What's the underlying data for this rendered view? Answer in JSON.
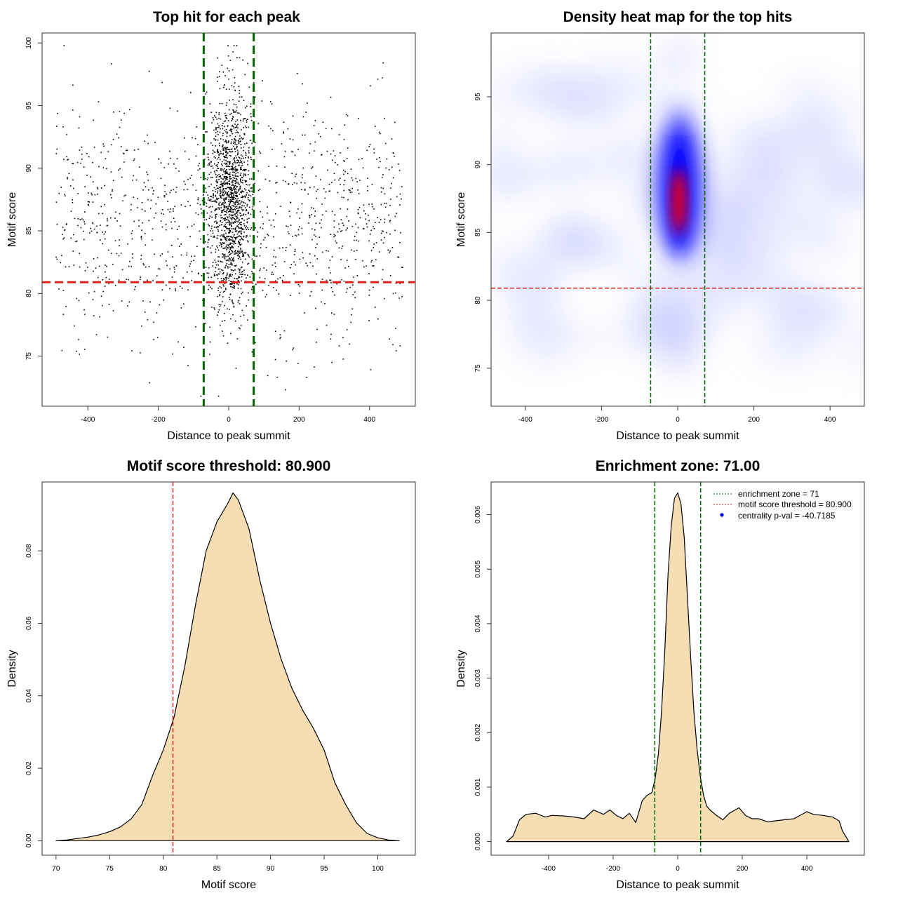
{
  "chart_data": [
    {
      "type": "scatter",
      "title": "Top hit for each peak",
      "xlabel": "Distance to peak summit",
      "ylabel": "Motif score",
      "xlim": [
        -530,
        530
      ],
      "ylim": [
        71,
        100.8
      ],
      "xticks": [
        "-400",
        "-200",
        "0",
        "200",
        "400"
      ],
      "xtick_values": [
        -400,
        -200,
        0,
        200,
        400
      ],
      "yticks": [
        "75",
        "80",
        "85",
        "90",
        "95",
        "100"
      ],
      "ytick_values": [
        75,
        80,
        85,
        90,
        95,
        100
      ],
      "vlines": [
        -71,
        71
      ],
      "hline": 80.9,
      "colors": {
        "points": "#000000",
        "vlines": "#006400",
        "hline": "#dd2222"
      }
    },
    {
      "type": "heatmap",
      "title": "Density heat map for the top hits",
      "xlabel": "Distance to peak summit",
      "ylabel": "Motif score",
      "xlim": [
        -490,
        490
      ],
      "ylim": [
        72.2,
        99.7
      ],
      "xticks": [
        "-400",
        "-200",
        "0",
        "200",
        "400"
      ],
      "xtick_values": [
        -400,
        -200,
        0,
        200,
        400
      ],
      "yticks": [
        "75",
        "80",
        "85",
        "90",
        "95"
      ],
      "ytick_values": [
        75,
        80,
        85,
        90,
        95
      ],
      "vlines": [
        -71,
        71
      ],
      "hline": 80.9,
      "colors": {
        "low": "#ffffff",
        "mid": "#0000ff",
        "high": "#ff0000",
        "vlines": "#006400",
        "hline": "#dd2222"
      }
    },
    {
      "type": "area",
      "title": "Motif score threshold: 80.900",
      "xlabel": "Motif score",
      "ylabel": "Density",
      "xlim": [
        68.7,
        103.5
      ],
      "ylim": [
        -0.004,
        0.099
      ],
      "xticks": [
        "70",
        "75",
        "80",
        "85",
        "90",
        "95",
        "100"
      ],
      "xtick_values": [
        70,
        75,
        80,
        85,
        90,
        95,
        100
      ],
      "yticks": [
        "0.00",
        "0.02",
        "0.04",
        "0.06",
        "0.08"
      ],
      "ytick_values": [
        0,
        0.02,
        0.04,
        0.06,
        0.08
      ],
      "x": [
        70,
        71,
        72,
        73,
        74,
        75,
        76,
        77,
        78,
        79,
        80,
        81,
        82,
        83,
        84,
        85,
        86,
        86.5,
        87,
        88,
        89,
        90,
        91,
        92,
        93,
        94,
        95,
        96,
        97,
        98,
        99,
        100,
        101,
        102
      ],
      "y": [
        0.0,
        0.0002,
        0.0006,
        0.001,
        0.0016,
        0.0025,
        0.0038,
        0.006,
        0.01,
        0.018,
        0.025,
        0.034,
        0.048,
        0.065,
        0.08,
        0.088,
        0.093,
        0.096,
        0.094,
        0.086,
        0.072,
        0.06,
        0.05,
        0.042,
        0.036,
        0.031,
        0.025,
        0.016,
        0.01,
        0.005,
        0.002,
        0.0008,
        0.0002,
        0.0
      ],
      "vline": 80.9,
      "colors": {
        "fill": "#f5deb3",
        "line": "#000000",
        "vline": "#dd2222"
      }
    },
    {
      "type": "area",
      "title": "Enrichment zone: 71.00",
      "xlabel": "Distance to peak summit",
      "ylabel": "Density",
      "xlim": [
        -578,
        578
      ],
      "ylim": [
        -0.00025,
        0.0066
      ],
      "xticks": [
        "-400",
        "-200",
        "0",
        "200",
        "400"
      ],
      "xtick_values": [
        -400,
        -200,
        0,
        200,
        400
      ],
      "yticks": [
        "0.000",
        "0.001",
        "0.002",
        "0.003",
        "0.004",
        "0.005",
        "0.006"
      ],
      "ytick_values": [
        0,
        0.001,
        0.002,
        0.003,
        0.004,
        0.005,
        0.006
      ],
      "x": [
        -530,
        -510,
        -490,
        -470,
        -440,
        -410,
        -390,
        -350,
        -320,
        -290,
        -260,
        -230,
        -210,
        -190,
        -170,
        -150,
        -130,
        -110,
        -95,
        -80,
        -70,
        -60,
        -50,
        -40,
        -30,
        -20,
        -10,
        0,
        10,
        20,
        30,
        40,
        50,
        60,
        70,
        80,
        90,
        100,
        120,
        140,
        160,
        190,
        210,
        230,
        250,
        280,
        300,
        330,
        360,
        400,
        420,
        450,
        480,
        500,
        510,
        530
      ],
      "y": [
        0.0,
        0.0001,
        0.0004,
        0.0005,
        0.00052,
        0.00045,
        0.00048,
        0.00047,
        0.00045,
        0.00042,
        0.00058,
        0.0005,
        0.00058,
        0.00048,
        0.00042,
        0.00052,
        0.00035,
        0.00075,
        0.00085,
        0.0009,
        0.00115,
        0.0016,
        0.0024,
        0.0035,
        0.0049,
        0.0058,
        0.0063,
        0.0064,
        0.0062,
        0.0056,
        0.0045,
        0.0034,
        0.0024,
        0.0017,
        0.0012,
        0.00085,
        0.00065,
        0.00058,
        0.00048,
        0.0004,
        0.00052,
        0.00062,
        0.00048,
        0.00042,
        0.00042,
        0.00036,
        0.00038,
        0.0004,
        0.00042,
        0.00055,
        0.0005,
        0.00048,
        0.00045,
        0.00038,
        0.0002,
        0.0
      ],
      "vlines": [
        -71,
        71
      ],
      "legend": {
        "position": "top-right",
        "items": [
          {
            "label": "enrichment zone = 71",
            "color": "#006400",
            "style": "dotted"
          },
          {
            "label": "motif score threshold = 80.900",
            "color": "#dd2222",
            "style": "dotted"
          },
          {
            "label": "centrality p-val = -40.7185",
            "color": "#0000ff",
            "style": "point"
          }
        ]
      },
      "colors": {
        "fill": "#f5deb3",
        "line": "#000000",
        "vlines": "#006400"
      }
    }
  ]
}
